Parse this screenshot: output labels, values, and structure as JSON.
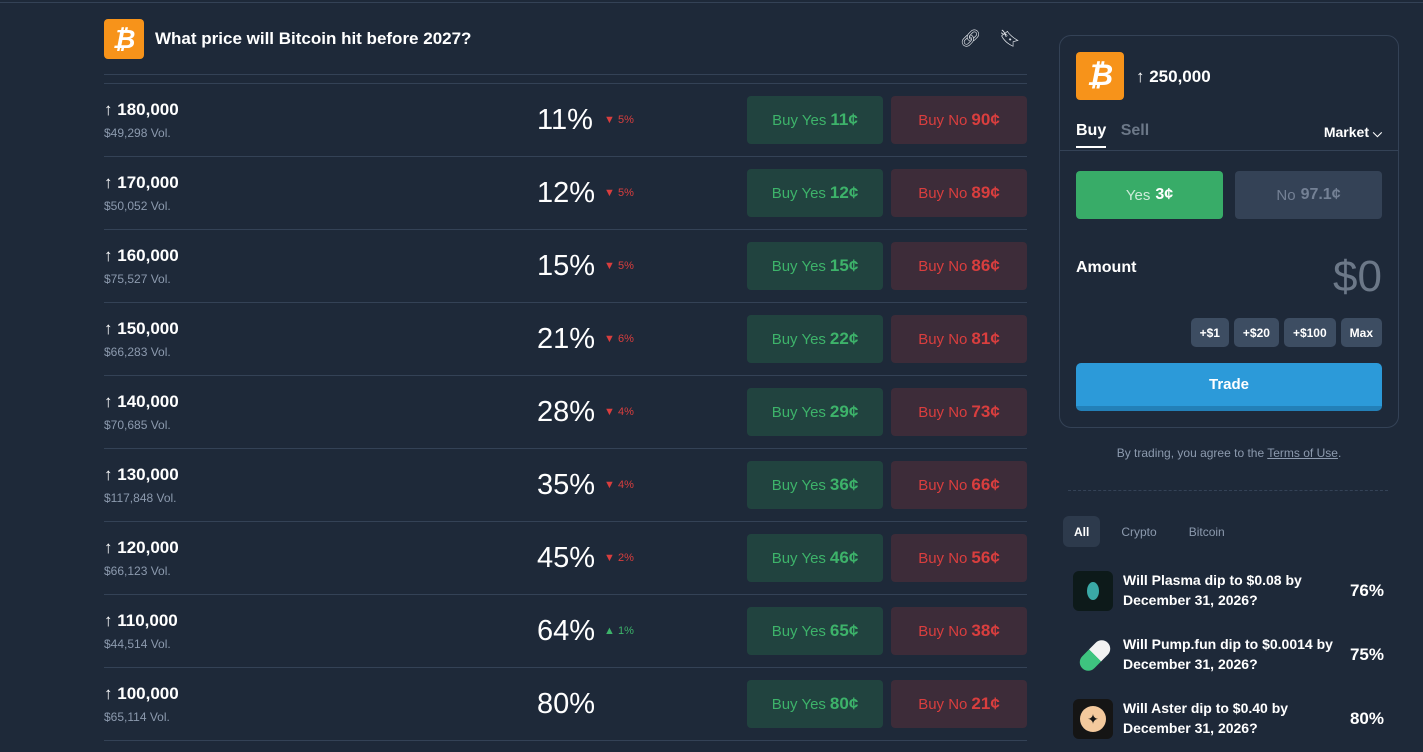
{
  "header": {
    "title": "What price will Bitcoin hit before 2027?",
    "logo_text": "₿",
    "icons": [
      "link-icon",
      "bookmark-icon"
    ]
  },
  "rows": [
    {
      "label": "180,000",
      "vol": "$49,298 Vol.",
      "pct": "11%",
      "change": "5%",
      "dir": "down",
      "yes": "11¢",
      "no": "90¢"
    },
    {
      "label": "170,000",
      "vol": "$50,052 Vol.",
      "pct": "12%",
      "change": "5%",
      "dir": "down",
      "yes": "12¢",
      "no": "89¢"
    },
    {
      "label": "160,000",
      "vol": "$75,527 Vol.",
      "pct": "15%",
      "change": "5%",
      "dir": "down",
      "yes": "15¢",
      "no": "86¢"
    },
    {
      "label": "150,000",
      "vol": "$66,283 Vol.",
      "pct": "21%",
      "change": "6%",
      "dir": "down",
      "yes": "22¢",
      "no": "81¢"
    },
    {
      "label": "140,000",
      "vol": "$70,685 Vol.",
      "pct": "28%",
      "change": "4%",
      "dir": "down",
      "yes": "29¢",
      "no": "73¢"
    },
    {
      "label": "130,000",
      "vol": "$117,848 Vol.",
      "pct": "35%",
      "change": "4%",
      "dir": "down",
      "yes": "36¢",
      "no": "66¢"
    },
    {
      "label": "120,000",
      "vol": "$66,123 Vol.",
      "pct": "45%",
      "change": "2%",
      "dir": "down",
      "yes": "46¢",
      "no": "56¢"
    },
    {
      "label": "110,000",
      "vol": "$44,514 Vol.",
      "pct": "64%",
      "change": "1%",
      "dir": "up",
      "yes": "65¢",
      "no": "38¢"
    },
    {
      "label": "100,000",
      "vol": "$65,114 Vol.",
      "pct": "80%",
      "change": "",
      "dir": "",
      "yes": "80¢",
      "no": "21¢"
    }
  ],
  "labels": {
    "arrow": "↑",
    "buy_yes": "Buy Yes",
    "buy_no": "Buy No",
    "down": "▼",
    "up": "▲"
  },
  "panel": {
    "title": "↑ 250,000",
    "tab_buy": "Buy",
    "tab_sell": "Sell",
    "order_type": "Market",
    "chevron": "⌄",
    "yes_label": "Yes",
    "yes_price": "3¢",
    "no_label": "No",
    "no_price": "97.1¢",
    "amount_label": "Amount",
    "amount_value": "$0",
    "quick": [
      "+$1",
      "+$20",
      "+$100",
      "Max"
    ],
    "trade": "Trade"
  },
  "terms": {
    "prefix": "By trading, you agree to the ",
    "link": "Terms of Use",
    "suffix": "."
  },
  "filters": [
    "All",
    "Crypto",
    "Bitcoin"
  ],
  "related": [
    {
      "text": "Will Plasma dip to $0.08 by December 31, 2026?",
      "pct": "76%",
      "icon": "plasma-icon"
    },
    {
      "text": "Will Pump.fun dip to $0.0014 by December 31, 2026?",
      "pct": "75%",
      "icon": "pill-icon"
    },
    {
      "text": "Will Aster dip to $0.40 by December 31, 2026?",
      "pct": "80%",
      "icon": "aster-icon"
    }
  ],
  "colors": {
    "background": "#1e2939",
    "yes": "#3db36a",
    "no": "#d93e3e",
    "bitcoin": "#f7931a",
    "trade": "#2c9ad9"
  }
}
